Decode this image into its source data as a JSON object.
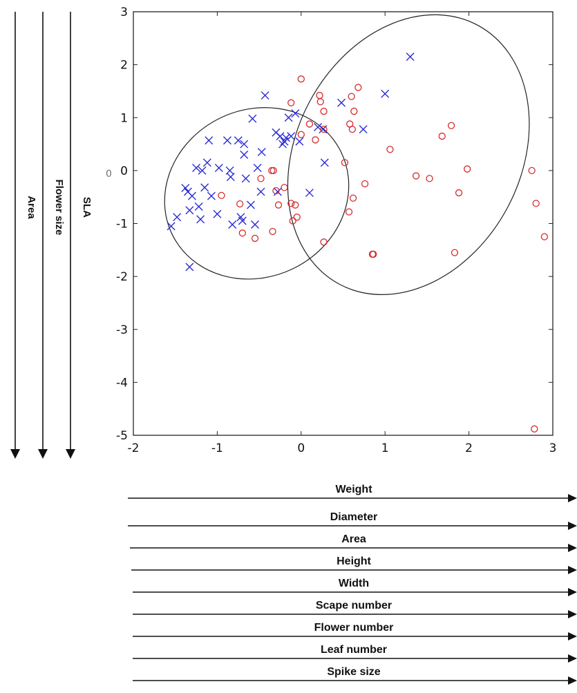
{
  "chart_data": {
    "type": "scatter",
    "xlim": [
      -2,
      3
    ],
    "ylim": [
      -5,
      3
    ],
    "xticks": [
      "-2",
      "-1",
      "0",
      "1",
      "2",
      "3"
    ],
    "yticks": [
      "-5",
      "-4",
      "-3",
      "-2",
      "-1",
      "0",
      "1",
      "2",
      "3"
    ],
    "grid": false,
    "legend": "none",
    "series": [
      {
        "marker": "x",
        "color": "#2b2bd6",
        "points": [
          [
            -1.55,
            -1.05
          ],
          [
            -1.48,
            -0.88
          ],
          [
            -1.38,
            -0.33
          ],
          [
            -1.35,
            -0.4
          ],
          [
            -1.33,
            -0.75
          ],
          [
            -1.3,
            -0.48
          ],
          [
            -1.25,
            0.05
          ],
          [
            -1.22,
            -0.68
          ],
          [
            -1.2,
            -0.92
          ],
          [
            -1.18,
            0.0
          ],
          [
            -1.15,
            -0.32
          ],
          [
            -1.12,
            0.15
          ],
          [
            -1.1,
            0.57
          ],
          [
            -1.07,
            -0.48
          ],
          [
            -1.0,
            -0.82
          ],
          [
            -0.98,
            0.05
          ],
          [
            -0.88,
            0.57
          ],
          [
            -0.85,
            0.0
          ],
          [
            -0.84,
            -0.12
          ],
          [
            -0.82,
            -1.02
          ],
          [
            -0.75,
            0.57
          ],
          [
            -0.72,
            -0.88
          ],
          [
            -0.7,
            -0.95
          ],
          [
            -0.68,
            0.5
          ],
          [
            -0.68,
            0.3
          ],
          [
            -0.66,
            -0.15
          ],
          [
            -0.6,
            -0.65
          ],
          [
            -0.58,
            0.98
          ],
          [
            -0.55,
            -1.02
          ],
          [
            -0.52,
            0.05
          ],
          [
            -0.48,
            -0.4
          ],
          [
            -0.47,
            0.35
          ],
          [
            -0.43,
            1.42
          ],
          [
            -0.3,
            0.72
          ],
          [
            -0.28,
            -0.4
          ],
          [
            -0.25,
            0.65
          ],
          [
            -0.22,
            0.5
          ],
          [
            -0.2,
            0.55
          ],
          [
            -0.18,
            0.62
          ],
          [
            -0.15,
            1.0
          ],
          [
            -0.12,
            0.65
          ],
          [
            -0.07,
            1.08
          ],
          [
            -0.02,
            0.55
          ],
          [
            0.1,
            -0.42
          ],
          [
            0.2,
            0.82
          ],
          [
            0.26,
            0.78
          ],
          [
            0.28,
            0.15
          ],
          [
            0.48,
            1.28
          ],
          [
            0.74,
            0.78
          ],
          [
            1.0,
            1.45
          ],
          [
            1.3,
            2.15
          ],
          [
            -1.33,
            -1.82
          ]
        ]
      },
      {
        "marker": "o",
        "color": "#d62b2b",
        "points": [
          [
            -0.95,
            -0.47
          ],
          [
            -0.73,
            -0.63
          ],
          [
            -0.7,
            -1.18
          ],
          [
            -0.55,
            -1.28
          ],
          [
            -0.48,
            -0.15
          ],
          [
            -0.35,
            0.0
          ],
          [
            -0.33,
            0.0
          ],
          [
            -0.34,
            -1.15
          ],
          [
            -0.3,
            -0.38
          ],
          [
            -0.27,
            -0.65
          ],
          [
            -0.2,
            -0.32
          ],
          [
            -0.12,
            1.28
          ],
          [
            -0.12,
            -0.62
          ],
          [
            -0.1,
            -0.95
          ],
          [
            -0.07,
            -0.65
          ],
          [
            -0.05,
            -0.88
          ],
          [
            0.0,
            0.68
          ],
          [
            0.0,
            1.73
          ],
          [
            0.1,
            0.88
          ],
          [
            0.17,
            0.58
          ],
          [
            0.22,
            1.42
          ],
          [
            0.23,
            1.3
          ],
          [
            0.27,
            1.12
          ],
          [
            0.27,
            0.78
          ],
          [
            0.27,
            -1.35
          ],
          [
            0.52,
            0.15
          ],
          [
            0.57,
            -0.78
          ],
          [
            0.58,
            0.88
          ],
          [
            0.6,
            1.4
          ],
          [
            0.61,
            0.78
          ],
          [
            0.62,
            -0.52
          ],
          [
            0.63,
            1.12
          ],
          [
            0.68,
            1.57
          ],
          [
            0.76,
            -0.25
          ],
          [
            0.85,
            -1.58
          ],
          [
            0.86,
            -1.58
          ],
          [
            1.06,
            0.4
          ],
          [
            1.37,
            -0.1
          ],
          [
            1.53,
            -0.15
          ],
          [
            1.68,
            0.65
          ],
          [
            1.79,
            0.85
          ],
          [
            1.83,
            -1.55
          ],
          [
            1.88,
            -0.42
          ],
          [
            1.98,
            0.03
          ],
          [
            2.75,
            0.0
          ],
          [
            2.8,
            -0.62
          ],
          [
            2.9,
            -1.25
          ],
          [
            2.78,
            -4.88
          ]
        ]
      }
    ],
    "ellipses": [
      {
        "cx": -0.53,
        "cy": -0.43,
        "rx": 1.12,
        "ry": 1.58,
        "rotation_deg": 26
      },
      {
        "cx": 1.28,
        "cy": 0.3,
        "rx": 1.75,
        "ry": 2.12,
        "rotation_deg": 62
      }
    ],
    "horizontal_arrows": [
      "Weight",
      "Diameter",
      "Area",
      "Height",
      "Width",
      "Scape number",
      "Flower number",
      "Leaf number",
      "Spike size"
    ],
    "vertical_arrows": [
      "Area",
      "Flower size",
      "SLA"
    ],
    "stray_mark": "0"
  }
}
